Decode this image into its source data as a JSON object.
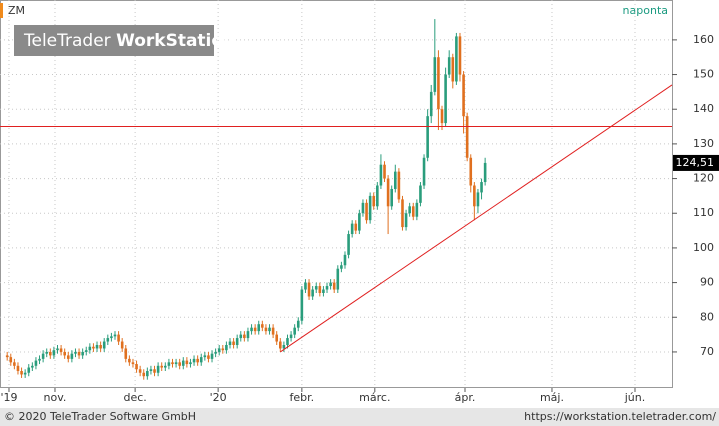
{
  "chart_data": {
    "type": "candlestick",
    "symbol": "ZM",
    "interval": "naponta",
    "logo": {
      "brand": "TeleTrader",
      "product": "WorkStation"
    },
    "footer": {
      "copyright": "© 2020 TeleTrader Software GmbH",
      "url": "https://workstation.teletrader.com/"
    },
    "up_color": "#2a9d7c",
    "down_color": "#e0701f",
    "grid": true,
    "xlim": [
      0,
      187
    ],
    "xticks": [
      {
        "value": 2.5,
        "label": "'19"
      },
      {
        "value": 15.3,
        "label": "nov."
      },
      {
        "value": 37.6,
        "label": "dec."
      },
      {
        "value": 60.7,
        "label": "'20"
      },
      {
        "value": 84,
        "label": "febr."
      },
      {
        "value": 104.3,
        "label": "márc."
      },
      {
        "value": 129.4,
        "label": "ápr."
      },
      {
        "value": 153.6,
        "label": "máj."
      },
      {
        "value": 176.7,
        "label": "jún."
      }
    ],
    "ylim": [
      59.6,
      171.5
    ],
    "yticks": [
      70,
      80,
      90,
      100,
      110,
      120,
      130,
      140,
      150,
      160
    ],
    "last": {
      "value": 124.51,
      "label": "124,51"
    },
    "hline": {
      "value": 135,
      "color": "#e02020"
    },
    "trendline": {
      "x": [
        78,
        187
      ],
      "y": [
        70,
        147
      ],
      "color": "#e02020"
    },
    "x": [
      2,
      3,
      4,
      5,
      6,
      7,
      8,
      9,
      10,
      11,
      12,
      13,
      14,
      15,
      16,
      17,
      18,
      19,
      20,
      21,
      22,
      23,
      24,
      25,
      26,
      27,
      28,
      29,
      30,
      31,
      32,
      33,
      34,
      35,
      36,
      37,
      38,
      39,
      40,
      41,
      42,
      43,
      44,
      45,
      46,
      47,
      48,
      49,
      50,
      51,
      52,
      53,
      54,
      55,
      56,
      57,
      58,
      59,
      60,
      61,
      62,
      63,
      64,
      65,
      66,
      67,
      68,
      69,
      70,
      71,
      72,
      73,
      74,
      75,
      76,
      77,
      78,
      79,
      80,
      81,
      82,
      83,
      84,
      85,
      86,
      87,
      88,
      89,
      90,
      91,
      92,
      93,
      94,
      95,
      96,
      97,
      98,
      99,
      100,
      101,
      102,
      103,
      104,
      105,
      106,
      107,
      108,
      109,
      110,
      111,
      112,
      113,
      114,
      115,
      116,
      117,
      118,
      119,
      120,
      121,
      122,
      123,
      124,
      125,
      126,
      127,
      128,
      129,
      130,
      131,
      132,
      133,
      134,
      135
    ],
    "open": [
      69,
      68.5,
      67,
      66,
      64.5,
      63.5,
      64,
      65.5,
      66,
      67.5,
      68,
      69.5,
      70,
      69,
      70.5,
      71,
      70,
      69,
      68,
      69.5,
      70,
      69,
      70,
      70.5,
      71.5,
      71,
      72,
      71,
      73,
      74,
      74.5,
      75,
      73,
      71,
      68,
      67,
      66.5,
      65,
      64,
      63,
      64.5,
      65,
      64,
      66,
      65.5,
      66,
      67,
      66.5,
      67,
      66,
      67.5,
      66.5,
      67,
      68,
      67,
      68.5,
      69,
      68,
      69.5,
      70,
      71,
      70.5,
      72,
      73,
      72,
      74,
      75,
      74,
      76,
      77,
      76,
      78,
      77,
      76,
      77,
      75,
      73,
      71,
      72,
      74,
      75,
      77,
      79,
      88,
      90,
      86,
      88,
      89,
      87,
      88,
      89,
      90,
      88,
      94,
      95,
      98,
      104,
      107,
      105,
      110,
      113,
      108,
      115,
      112,
      118,
      124,
      120,
      112,
      117,
      122,
      114,
      106,
      110,
      112,
      109,
      113,
      118,
      126,
      138,
      145,
      155,
      140,
      136,
      150,
      155,
      148,
      161,
      150,
      138,
      126,
      118,
      112,
      116,
      119
    ],
    "high": [
      70,
      69.5,
      68,
      67,
      65.5,
      65,
      66.5,
      67,
      68.5,
      69,
      70.5,
      71,
      71,
      71.5,
      72,
      72,
      71,
      70,
      70.5,
      71,
      71,
      71,
      71.5,
      72.5,
      72.5,
      73,
      73,
      74,
      75,
      75.5,
      76,
      76,
      74,
      72,
      69,
      68,
      67.5,
      66,
      65,
      65.5,
      66,
      66,
      67,
      67,
      67,
      68,
      68,
      68,
      68,
      68.5,
      68.5,
      68,
      69,
      69,
      69.5,
      70,
      70,
      70.5,
      71,
      72,
      72,
      73,
      74,
      74,
      75,
      76,
      76,
      77,
      78,
      78,
      79,
      79,
      78,
      78,
      78,
      76,
      74,
      73,
      75,
      76,
      78,
      80,
      89,
      91,
      91,
      89,
      90,
      90,
      89,
      90,
      91,
      91,
      95,
      96,
      99,
      105,
      108,
      108,
      111,
      114,
      114,
      116,
      116,
      119,
      127,
      125,
      121,
      118,
      124,
      123,
      115,
      111,
      113,
      113,
      114,
      119,
      127,
      140,
      147,
      166,
      157,
      141,
      152,
      157,
      156,
      162,
      162,
      151,
      139,
      127,
      119,
      117,
      120,
      126
    ],
    "low": [
      67.5,
      66,
      65,
      63.5,
      62.5,
      62.5,
      63,
      64.5,
      65,
      66.5,
      67,
      68.5,
      68,
      68,
      69.5,
      69,
      68,
      67,
      67,
      68.5,
      68,
      68,
      69,
      69.5,
      70,
      70,
      70,
      70,
      72,
      73,
      73.5,
      72,
      70,
      67,
      66,
      65.5,
      64,
      63,
      62,
      62,
      63.5,
      63,
      63,
      64.5,
      64.5,
      65,
      65.5,
      65.5,
      65,
      65,
      65.5,
      65.5,
      66,
      66,
      66,
      67.5,
      67,
      67,
      68.5,
      69,
      69.5,
      69.5,
      71,
      71,
      71,
      73,
      73,
      73,
      75,
      75,
      75,
      76,
      75,
      75,
      74,
      72,
      70,
      70,
      71,
      73,
      74,
      76,
      78,
      87,
      85,
      85,
      87,
      86,
      86,
      87,
      88,
      87,
      87,
      93,
      94,
      97,
      103,
      104,
      104,
      109,
      107,
      107,
      111,
      111,
      117,
      119,
      104,
      111,
      116,
      113,
      105,
      105,
      109,
      108,
      108,
      112,
      117,
      125,
      136,
      144,
      134,
      134,
      135,
      149,
      146,
      147,
      148,
      133,
      125,
      116,
      108,
      110,
      114,
      118
    ],
    "close": [
      68.5,
      67,
      66,
      64.5,
      63.5,
      64,
      65.5,
      66,
      67.5,
      68,
      69.5,
      70,
      69,
      70.5,
      71,
      70,
      69,
      68,
      69.5,
      70,
      69,
      70,
      70.5,
      71.5,
      71,
      72,
      71,
      73,
      74,
      74.5,
      75,
      73,
      71,
      68,
      67,
      66.5,
      65,
      64,
      63,
      64.5,
      65,
      64,
      66,
      65.5,
      66,
      67,
      66.5,
      67,
      66,
      67.5,
      66.5,
      67,
      68,
      67,
      68.5,
      69,
      68,
      69.5,
      70,
      71,
      70.5,
      72,
      73,
      72,
      74,
      75,
      74,
      76,
      77,
      76,
      78,
      77,
      76,
      77,
      75,
      73,
      71,
      72,
      74,
      75,
      77,
      79,
      88,
      90,
      86,
      88,
      89,
      87,
      88,
      89,
      90,
      88,
      94,
      95,
      98,
      104,
      107,
      105,
      110,
      113,
      108,
      115,
      112,
      118,
      124,
      120,
      112,
      117,
      122,
      114,
      106,
      110,
      112,
      109,
      113,
      118,
      126,
      138,
      145,
      155,
      140,
      136,
      150,
      155,
      148,
      161,
      150,
      138,
      126,
      118,
      112,
      116,
      119,
      124.51
    ]
  }
}
